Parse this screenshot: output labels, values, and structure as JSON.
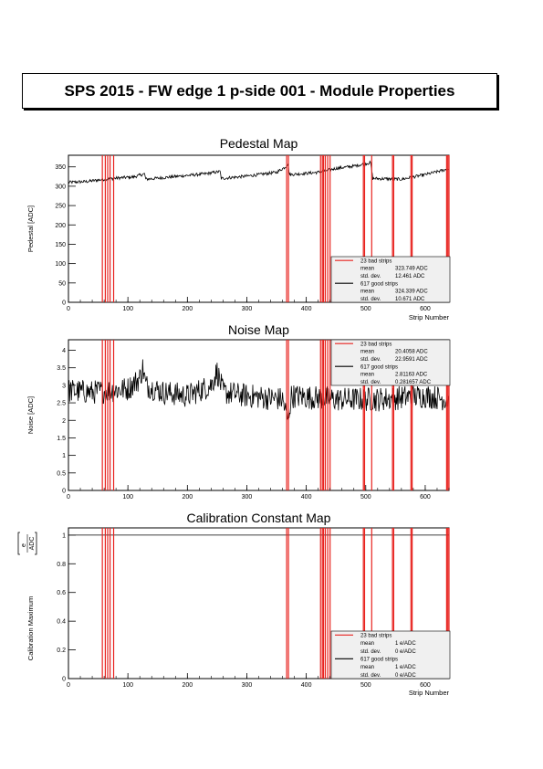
{
  "page": {
    "title": "SPS 2015 - FW edge 1 p-side 001 - Module Properties"
  },
  "colors": {
    "bad": "#e8231f",
    "good": "#000000",
    "legend_bg": "#f0f0f0"
  },
  "bad_strips": [
    57,
    62,
    66,
    70,
    76,
    367,
    370,
    424,
    427,
    429,
    432,
    440,
    496,
    498,
    510,
    545,
    547,
    576,
    578,
    636,
    638,
    640,
    436
  ],
  "chart_data": [
    {
      "type": "line",
      "title": "Pedestal Map",
      "ylabel": "Pedestal [ADC]",
      "xlabel": "Strip Number",
      "xlim": [
        0,
        640
      ],
      "ylim": [
        0,
        380
      ],
      "x_ticks": [
        0,
        100,
        200,
        300,
        400,
        500,
        600
      ],
      "y_ticks": [
        0,
        50,
        100,
        150,
        200,
        250,
        300,
        350
      ],
      "good_profile": [
        [
          0,
          310
        ],
        [
          30,
          312
        ],
        [
          60,
          318
        ],
        [
          90,
          322
        ],
        [
          110,
          324
        ],
        [
          128,
          332
        ],
        [
          130,
          318
        ],
        [
          180,
          325
        ],
        [
          230,
          332
        ],
        [
          255,
          338
        ],
        [
          257,
          320
        ],
        [
          300,
          326
        ],
        [
          350,
          336
        ],
        [
          365,
          350
        ],
        [
          369,
          358
        ],
        [
          372,
          330
        ],
        [
          420,
          336
        ],
        [
          450,
          346
        ],
        [
          480,
          352
        ],
        [
          508,
          361
        ],
        [
          512,
          320
        ],
        [
          560,
          318
        ],
        [
          600,
          330
        ],
        [
          640,
          345
        ]
      ],
      "legend": {
        "bad": {
          "label": "23 bad strips",
          "mean_label": "mean",
          "mean": "323.749 ADC",
          "std_label": "std. dev.",
          "std": "12.461 ADC"
        },
        "good": {
          "label": "617 good strips",
          "mean_label": "mean",
          "mean": "324.339 ADC",
          "std_label": "std. dev.",
          "std": "10.671 ADC"
        }
      }
    },
    {
      "type": "line",
      "title": "Noise Map",
      "ylabel": "Noise [ADC]",
      "xlabel": "",
      "xlim": [
        0,
        640
      ],
      "ylim": [
        0,
        4.3
      ],
      "x_ticks": [
        0,
        100,
        200,
        300,
        400,
        500,
        600
      ],
      "y_ticks": [
        0,
        0.5,
        1,
        1.5,
        2,
        2.5,
        3,
        3.5,
        4
      ],
      "good_profile": [
        [
          0,
          2.85
        ],
        [
          40,
          2.8
        ],
        [
          100,
          2.9
        ],
        [
          120,
          3.2
        ],
        [
          125,
          3.5
        ],
        [
          130,
          3.0
        ],
        [
          160,
          2.8
        ],
        [
          200,
          2.7
        ],
        [
          240,
          3.0
        ],
        [
          250,
          3.4
        ],
        [
          260,
          2.8
        ],
        [
          300,
          2.7
        ],
        [
          360,
          2.6
        ],
        [
          369,
          2.0
        ],
        [
          375,
          2.7
        ],
        [
          450,
          2.6
        ],
        [
          520,
          2.6
        ],
        [
          600,
          2.7
        ],
        [
          640,
          2.6
        ]
      ],
      "legend": {
        "bad": {
          "label": "23 bad strips",
          "mean_label": "mean",
          "mean": "20.4058 ADC",
          "std_label": "std. dev.",
          "std": "22.9591 ADC"
        },
        "good": {
          "label": "617 good strips",
          "mean_label": "mean",
          "mean": "2.81163 ADC",
          "std_label": "std. dev.",
          "std": "0.281657 ADC"
        }
      }
    },
    {
      "type": "line",
      "title": "Calibration Constant Map",
      "ylabel": "Calibration Maximum",
      "ylabel_unit_num": "e",
      "ylabel_unit_den": "ADC",
      "xlabel": "Strip Number",
      "xlim": [
        0,
        640
      ],
      "ylim": [
        0,
        1.05
      ],
      "x_ticks": [
        0,
        100,
        200,
        300,
        400,
        500,
        600
      ],
      "y_ticks": [
        0,
        0.2,
        0.4,
        0.6,
        0.8,
        1
      ],
      "good_profile": [
        [
          0,
          1
        ],
        [
          640,
          1
        ]
      ],
      "legend": {
        "bad": {
          "label": "23 bad strips",
          "mean_label": "mean",
          "mean": "1 e/ADC",
          "std_label": "std. dev.",
          "std": "0 e/ADC"
        },
        "good": {
          "label": "617 good strips",
          "mean_label": "mean",
          "mean": "1 e/ADC",
          "std_label": "std. dev.",
          "std": "0 e/ADC"
        }
      }
    }
  ]
}
